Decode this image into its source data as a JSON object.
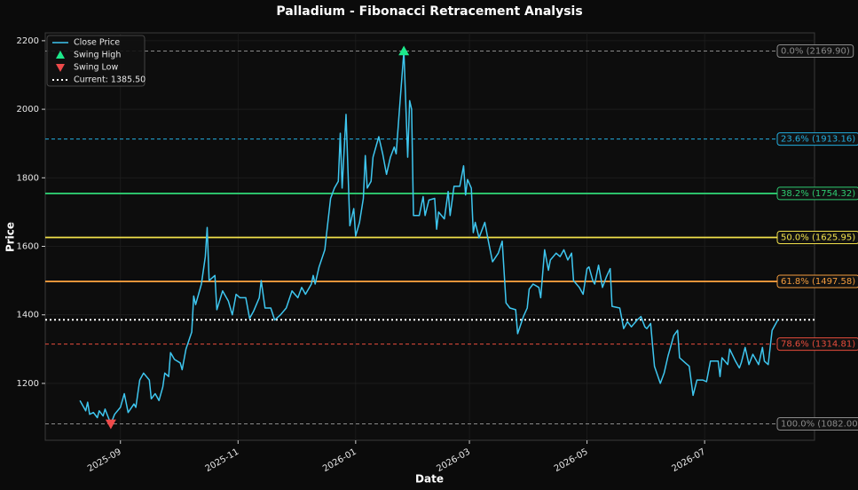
{
  "chart_data": {
    "type": "line",
    "title": "Palladium - Fibonacci Retracement Analysis",
    "xlabel": "Date",
    "ylabel": "Price",
    "x": [
      20311,
      20314,
      20315,
      20316,
      20318,
      20320,
      20321,
      20323,
      20324,
      20327,
      20329,
      20332,
      20334,
      20336,
      20339,
      20340,
      20342,
      20344,
      20347,
      20348,
      20350,
      20352,
      20354,
      20355,
      20357,
      20358,
      20360,
      20363,
      20364,
      20366,
      20369,
      20370,
      20371,
      20374,
      20376,
      20377,
      20378,
      20381,
      20382,
      20385,
      20388,
      20390,
      20392,
      20394,
      20397,
      20399,
      20401,
      20404,
      20405,
      20407,
      20410,
      20412,
      20415,
      20418,
      20421,
      20424,
      20426,
      20428,
      20431,
      20432,
      20433,
      20435,
      20438,
      20439,
      20441,
      20443,
      20445,
      20446,
      20447,
      20449,
      20450,
      20451,
      20453,
      20454,
      20456,
      20458,
      20459,
      20460,
      20462,
      20463,
      20466,
      20468,
      20470,
      20472,
      20474,
      20475,
      20477,
      20479,
      20481,
      20482,
      20483,
      20484,
      20487,
      20489,
      20490,
      20492,
      20495,
      20496,
      20497,
      20500,
      20502,
      20503,
      20505,
      20508,
      20510,
      20511,
      20512,
      20514,
      20515,
      20516,
      20518,
      20521,
      20523,
      20525,
      20528,
      20530,
      20532,
      20534,
      20537,
      20538,
      20541,
      20543,
      20544,
      20546,
      20549,
      20550,
      20552,
      20554,
      20555,
      20558,
      20560,
      20562,
      20564,
      20566,
      20567,
      20570,
      20572,
      20574,
      20575,
      20577,
      20578,
      20580,
      20582,
      20584,
      20586,
      20587,
      20591,
      20593,
      20595,
      20597,
      20600,
      20602,
      20604,
      20605,
      20607,
      20608,
      20609,
      20612,
      20614,
      20616,
      20619,
      20621,
      20622,
      20625,
      20627,
      20629,
      20631,
      20634,
      20636,
      20638,
      20642,
      20643,
      20644,
      20647,
      20648,
      20651,
      20653,
      20654,
      20656,
      20658,
      20660,
      20663,
      20665,
      20666,
      20668,
      20670,
      20672,
      20673
    ],
    "series": [
      {
        "name": "Close Price",
        "color": "#3ec6ef",
        "values": [
          1150,
          1120,
          1145,
          1110,
          1115,
          1100,
          1120,
          1105,
          1125,
          1082,
          1110,
          1130,
          1170,
          1115,
          1140,
          1130,
          1210,
          1230,
          1210,
          1155,
          1170,
          1150,
          1190,
          1230,
          1220,
          1290,
          1270,
          1260,
          1240,
          1300,
          1350,
          1455,
          1430,
          1490,
          1570,
          1655,
          1500,
          1515,
          1415,
          1470,
          1440,
          1400,
          1460,
          1450,
          1450,
          1390,
          1410,
          1450,
          1500,
          1420,
          1420,
          1385,
          1400,
          1420,
          1470,
          1450,
          1480,
          1460,
          1490,
          1515,
          1490,
          1540,
          1590,
          1640,
          1740,
          1770,
          1790,
          1930,
          1770,
          1985,
          1820,
          1660,
          1710,
          1630,
          1670,
          1740,
          1865,
          1770,
          1790,
          1860,
          1920,
          1870,
          1810,
          1860,
          1890,
          1870,
          2020,
          2169.9,
          1860,
          2025,
          2000,
          1690,
          1690,
          1745,
          1690,
          1735,
          1740,
          1650,
          1700,
          1680,
          1760,
          1690,
          1775,
          1775,
          1835,
          1750,
          1795,
          1770,
          1640,
          1670,
          1625,
          1670,
          1610,
          1555,
          1580,
          1615,
          1435,
          1420,
          1415,
          1345,
          1395,
          1420,
          1475,
          1490,
          1480,
          1450,
          1590,
          1530,
          1560,
          1580,
          1570,
          1590,
          1560,
          1580,
          1500,
          1480,
          1460,
          1535,
          1540,
          1500,
          1490,
          1545,
          1480,
          1510,
          1535,
          1425,
          1420,
          1360,
          1380,
          1365,
          1385,
          1395,
          1365,
          1360,
          1375,
          1310,
          1250,
          1200,
          1230,
          1280,
          1340,
          1355,
          1275,
          1260,
          1250,
          1165,
          1210,
          1210,
          1205,
          1265,
          1265,
          1220,
          1275,
          1255,
          1300,
          1265,
          1245,
          1260,
          1305,
          1255,
          1285,
          1255,
          1305,
          1265,
          1255,
          1355,
          1375,
          1385.5
        ]
      }
    ],
    "markers": [
      {
        "name": "Swing High",
        "color": "#1de98b",
        "shape": "triangle-up",
        "x": 20479,
        "y": 2169.9
      },
      {
        "name": "Swing Low",
        "color": "#ef4a4a",
        "shape": "triangle-down",
        "x": 20327,
        "y": 1082
      }
    ],
    "current": {
      "name": "Current: 1385.50",
      "value": 1385.5,
      "color": "#ffffff"
    },
    "levels": [
      {
        "label": "0.0% (2169.90)",
        "value": 2169.9,
        "color": "#8a8a8a",
        "dashed": true
      },
      {
        "label": "23.6% (1913.16)",
        "value": 1913.16,
        "color": "#23aee0",
        "dashed": true
      },
      {
        "label": "38.2% (1754.32)",
        "value": 1754.32,
        "color": "#2ecc71",
        "dashed": false
      },
      {
        "label": "50.0% (1625.95)",
        "value": 1625.95,
        "color": "#f1e04b",
        "dashed": false
      },
      {
        "label": "61.8% (1497.58)",
        "value": 1497.58,
        "color": "#f39c3d",
        "dashed": false
      },
      {
        "label": "78.6% (1314.81)",
        "value": 1314.81,
        "color": "#e74c3c",
        "dashed": true
      },
      {
        "label": "100.0% (1082.00)",
        "value": 1082,
        "color": "#8a8a8a",
        "dashed": true
      }
    ],
    "xlim": [
      20293,
      20692
    ],
    "ylim": [
      1034,
      2223
    ],
    "xticks": [
      {
        "value": 20332,
        "label": "2025-09"
      },
      {
        "value": 20393,
        "label": "2025-11"
      },
      {
        "value": 20454,
        "label": "2026-01"
      },
      {
        "value": 20513,
        "label": "2026-03"
      },
      {
        "value": 20574,
        "label": "2026-05"
      },
      {
        "value": 20635,
        "label": "2026-07"
      }
    ],
    "yticks": [
      1200,
      1400,
      1600,
      1800,
      2000,
      2200
    ],
    "grid": true,
    "legend": "upper left"
  }
}
